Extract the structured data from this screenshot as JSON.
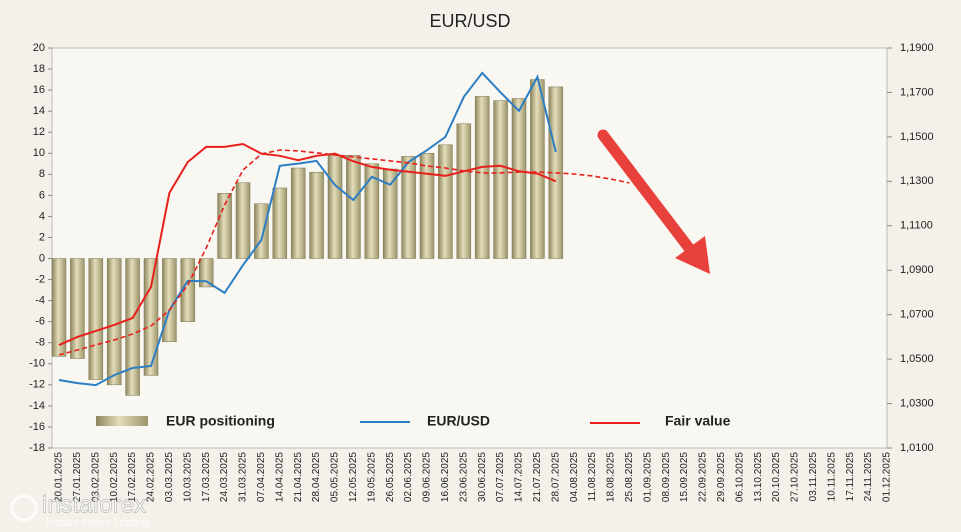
{
  "chart_data": {
    "type": "bar_line",
    "title": "EUR/USD",
    "categories": [
      "20.01.2025",
      "27.01.2025",
      "03.02.2025",
      "10.02.2025",
      "17.02.2025",
      "24.02.2025",
      "03.03.2025",
      "10.03.2025",
      "17.03.2025",
      "24.03.2025",
      "31.03.2025",
      "07.04.2025",
      "14.04.2025",
      "21.04.2025",
      "28.04.2025",
      "05.05.2025",
      "12.05.2025",
      "19.05.2025",
      "26.05.2025",
      "02.06.2025",
      "09.06.2025",
      "16.06.2025",
      "23.06.2025",
      "30.06.2025",
      "07.07.2025",
      "14.07.2025",
      "21.07.2025",
      "28.07.2025",
      "04.08.2025",
      "11.08.2025",
      "18.08.2025",
      "25.08.2025",
      "01.09.2025",
      "08.09.2025",
      "15.09.2025",
      "22.09.2025",
      "29.09.2025",
      "06.10.2025",
      "13.10.2025",
      "20.10.2025",
      "27.10.2025",
      "03.11.2025",
      "10.11.2025",
      "17.11.2025",
      "24.11.2025",
      "01.12.2025"
    ],
    "series": [
      {
        "name": "EUR positioning",
        "type": "bar",
        "color": "#c2bb90",
        "values": [
          -9.3,
          -9.5,
          -11.5,
          -12.0,
          -13.0,
          -11.1,
          -7.9,
          -6.0,
          -2.7,
          6.2,
          7.2,
          5.2,
          6.7,
          8.6,
          8.2,
          9.8,
          9.8,
          9.0,
          8.5,
          9.7,
          10.0,
          10.8,
          12.8,
          15.4,
          15.0,
          15.2,
          17.0,
          16.3,
          null,
          null,
          null,
          null,
          null,
          null,
          null,
          null,
          null,
          null,
          null,
          null,
          null,
          null,
          null,
          null,
          null,
          null
        ]
      },
      {
        "name": "EUR/USD",
        "type": "line",
        "axis": "y2",
        "color": "#2e7ec4",
        "values": [
          1.0406,
          1.0392,
          1.0383,
          1.0428,
          1.046,
          1.0469,
          1.072,
          1.0852,
          1.085,
          1.0798,
          1.0923,
          1.1036,
          1.137,
          1.138,
          1.1392,
          1.1283,
          1.1216,
          1.132,
          1.1285,
          1.1387,
          1.144,
          1.15,
          1.168,
          1.1788,
          1.17,
          1.1617,
          1.177,
          1.1432,
          null,
          null,
          null,
          null,
          null,
          null,
          null,
          null,
          null,
          null,
          null,
          null,
          null,
          null,
          null,
          null,
          null,
          null
        ]
      },
      {
        "name": "Fair value",
        "type": "line",
        "axis": "y2",
        "color": "#e8201c",
        "values": [
          1.0563,
          1.06,
          1.0627,
          1.0654,
          1.0685,
          1.0825,
          1.1248,
          1.1387,
          1.1455,
          1.1455,
          1.1468,
          1.1425,
          1.1415,
          1.1395,
          1.1415,
          1.1425,
          1.139,
          1.1365,
          1.1352,
          1.1343,
          1.1334,
          1.1325,
          1.1345,
          1.1365,
          1.137,
          1.1345,
          1.1335,
          1.13,
          null,
          null,
          null,
          null,
          null,
          null,
          null,
          null,
          null,
          null,
          null,
          null,
          null,
          null,
          null,
          null,
          null,
          null
        ]
      },
      {
        "type": "line",
        "axis": "y2",
        "color": "#e8201c",
        "dashed": true,
        "values": [
          1.0519,
          1.0541,
          1.0564,
          1.0586,
          1.0613,
          1.0649,
          1.0721,
          1.0834,
          1.1,
          1.1194,
          1.1351,
          1.1423,
          1.1441,
          1.1437,
          1.1428,
          1.1419,
          1.141,
          1.1401,
          1.1392,
          1.1383,
          1.1369,
          1.136,
          1.1347,
          1.1338,
          1.1338,
          1.1342,
          1.1342,
          1.1338,
          1.1333,
          1.1324,
          1.131,
          1.1293,
          null,
          null,
          null,
          null,
          null,
          null,
          null,
          null,
          null,
          null,
          null,
          null,
          null,
          null
        ]
      }
    ],
    "ylim": [
      -18,
      20
    ],
    "yticks": [
      -18,
      -16,
      -14,
      -12,
      -10,
      -8,
      -6,
      -4,
      -2,
      0,
      2,
      4,
      6,
      8,
      10,
      12,
      14,
      16,
      18,
      20
    ],
    "y2lim": [
      1.01,
      1.19
    ],
    "y2ticks": [
      {
        "value": 1.01,
        "label": "1,0100"
      },
      {
        "value": 1.03,
        "label": "1,0300"
      },
      {
        "value": 1.05,
        "label": "1,0500"
      },
      {
        "value": 1.07,
        "label": "1,0700"
      },
      {
        "value": 1.09,
        "label": "1,0900"
      },
      {
        "value": 1.11,
        "label": "1,1100"
      },
      {
        "value": 1.13,
        "label": "1,1300"
      },
      {
        "value": 1.15,
        "label": "1,1500"
      },
      {
        "value": 1.17,
        "label": "1,1700"
      },
      {
        "value": 1.19,
        "label": "1,1900"
      }
    ]
  },
  "watermark": {
    "brand": "instaforex",
    "tagline": "Instant Forex Trading"
  }
}
